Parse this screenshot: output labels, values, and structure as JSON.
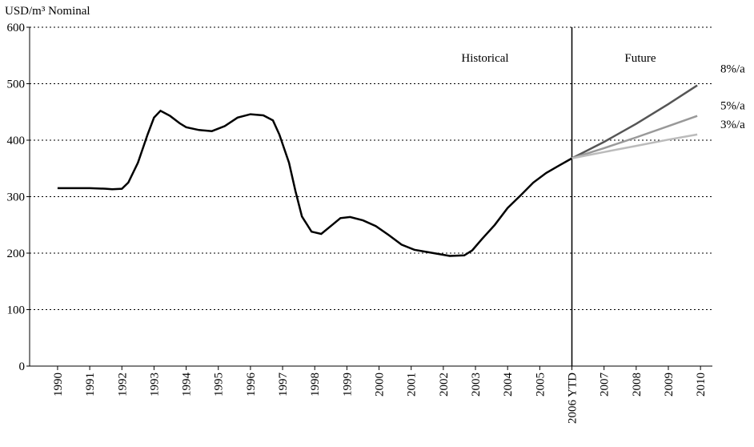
{
  "chart_data": {
    "type": "line",
    "y_label": "USD/m³ Nominal",
    "annotations": [
      "Historical",
      "Future"
    ],
    "divider_x": 2006,
    "xlim": [
      1989.13,
      2010.37
    ],
    "xticks": [
      1990,
      1991,
      1992,
      1993,
      1994,
      1995,
      1996,
      1997,
      1998,
      1999,
      2000,
      2001,
      2002,
      2003,
      2004,
      2005,
      {
        "value": 2006,
        "label": "2006 YTD"
      },
      2007,
      2008,
      2009,
      2010
    ],
    "ylim": [
      0,
      600
    ],
    "yticks": [
      0,
      100,
      200,
      300,
      400,
      500,
      600
    ],
    "grid": true,
    "series": [
      {
        "color": "#000000",
        "x": [
          1990,
          1990.5,
          1991,
          1991.5,
          1991.7,
          1992,
          1992.2,
          1992.5,
          1992.8,
          1993,
          1993.2,
          1993.5,
          1993.8,
          1994,
          1994.4,
          1994.8,
          1995.2,
          1995.6,
          1996,
          1996.4,
          1996.7,
          1996.9,
          1997.2,
          1997.4,
          1997.6,
          1997.9,
          1998.2,
          1998.5,
          1998.8,
          1999.1,
          1999.5,
          1999.9,
          2000.3,
          2000.7,
          2001.1,
          2001.5,
          2001.9,
          2002.2,
          2002.65,
          2002.9,
          2003.2,
          2003.6,
          2004,
          2004.4,
          2004.8,
          2005.2,
          2005.6,
          2006
        ],
        "values": [
          315,
          315,
          315,
          314,
          313,
          314,
          325,
          360,
          410,
          440,
          452,
          443,
          430,
          423,
          418,
          416,
          425,
          440,
          446,
          444,
          435,
          410,
          360,
          310,
          265,
          238,
          234,
          248,
          262,
          264,
          258,
          248,
          232,
          215,
          206,
          202,
          198,
          195,
          196,
          205,
          225,
          250,
          280,
          302,
          325,
          342,
          355,
          368
        ]
      },
      {
        "name": "8%/a",
        "color": "#555555",
        "x": [
          2006,
          2007,
          2008,
          2009,
          2009.9
        ],
        "values": [
          368,
          397,
          429,
          464,
          497
        ]
      },
      {
        "name": "5%/a",
        "color": "#999999",
        "x": [
          2006,
          2007,
          2008,
          2009,
          2009.9
        ],
        "values": [
          368,
          386,
          405,
          425,
          443
        ]
      },
      {
        "name": "3%/a",
        "color": "#bbbbbb",
        "x": [
          2006,
          2007,
          2008,
          2009,
          2009.9
        ],
        "values": [
          368,
          379,
          390,
          401,
          410
        ]
      }
    ]
  }
}
